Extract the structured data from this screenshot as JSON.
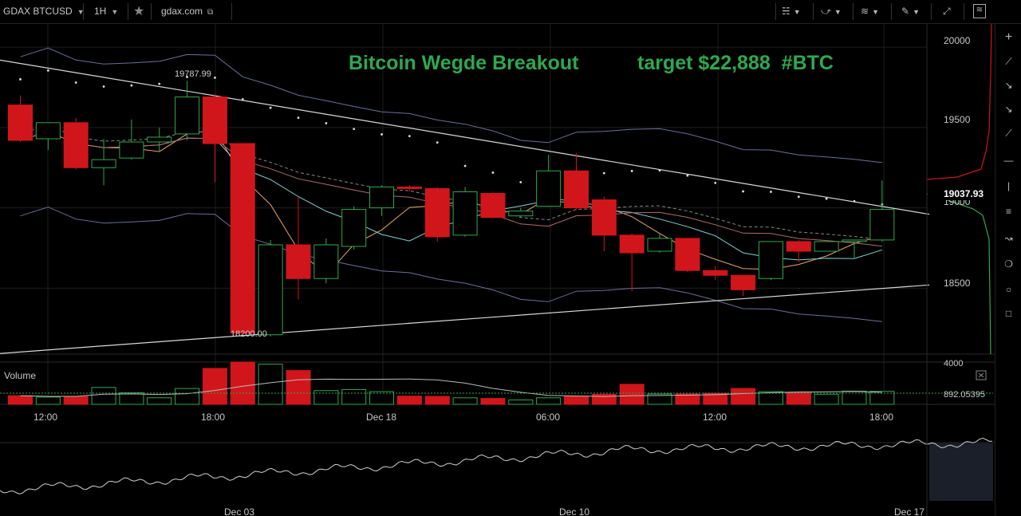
{
  "toolbar": {
    "symbol": "GDAX BTCUSD",
    "interval": "1H",
    "star_icon": "star-icon",
    "source": "gdax.com",
    "right_icons": [
      "bars-style-icon",
      "compare-icon",
      "indicators-icon",
      "draw-icon",
      "fullscreen-icon",
      "snapshot-icon"
    ]
  },
  "headline": {
    "title": "Bitcoin Wegde Breakout",
    "target": "target $22,888  #BTC",
    "color": "#2fa84f"
  },
  "annotations": {
    "high": "19787.99",
    "low": "18200.00"
  },
  "price_scale": {
    "ticks": [
      "20000",
      "19500",
      "19000",
      "18500"
    ],
    "current": "19037.93"
  },
  "volume_panel": {
    "label": "Volume",
    "top_tick": "4000",
    "current": "892.05395"
  },
  "time_axis": {
    "labels": [
      "12:00",
      "18:00",
      "Dec 18",
      "06:00",
      "12:00",
      "18:00"
    ]
  },
  "overview_axis": {
    "labels": [
      "Dec 03",
      "Dec 10",
      "Dec 17"
    ]
  },
  "colors": {
    "up": "#2fa84f",
    "down": "#d0161b",
    "background": "#000000",
    "grid": "#1e1e1e"
  },
  "chart_data": {
    "type": "candlestick",
    "symbol": "GDAX BTCUSD",
    "interval": "1H",
    "ylim": [
      18050,
      20100
    ],
    "candles": [
      {
        "t": "09:00",
        "o": 19640,
        "h": 19700,
        "l": 19410,
        "c": 19420
      },
      {
        "t": "10:00",
        "o": 19430,
        "h": 19530,
        "l": 19360,
        "c": 19530
      },
      {
        "t": "11:00",
        "o": 19530,
        "h": 19560,
        "l": 19240,
        "c": 19250
      },
      {
        "t": "12:00",
        "o": 19250,
        "h": 19430,
        "l": 19140,
        "c": 19300
      },
      {
        "t": "13:00",
        "o": 19310,
        "h": 19550,
        "l": 19300,
        "c": 19410
      },
      {
        "t": "14:00",
        "o": 19410,
        "h": 19500,
        "l": 19350,
        "c": 19440
      },
      {
        "t": "15:00",
        "o": 19460,
        "h": 19790,
        "l": 19420,
        "c": 19690
      },
      {
        "t": "16:00",
        "o": 19690,
        "h": 19710,
        "l": 19160,
        "c": 19400
      },
      {
        "t": "17:00",
        "o": 19400,
        "h": 19400,
        "l": 18210,
        "c": 18220
      },
      {
        "t": "18:00",
        "o": 18210,
        "h": 18800,
        "l": 18200,
        "c": 18770
      },
      {
        "t": "19:00",
        "o": 18770,
        "h": 19070,
        "l": 18430,
        "c": 18560
      },
      {
        "t": "20:00",
        "o": 18560,
        "h": 18810,
        "l": 18530,
        "c": 18770
      },
      {
        "t": "21:00",
        "o": 18760,
        "h": 19010,
        "l": 18740,
        "c": 18990
      },
      {
        "t": "22:00",
        "o": 19000,
        "h": 19140,
        "l": 18950,
        "c": 19130
      },
      {
        "t": "23:00",
        "o": 19130,
        "h": 19140,
        "l": 19100,
        "c": 19120
      },
      {
        "t": "00:00",
        "o": 19120,
        "h": 19130,
        "l": 18790,
        "c": 18820
      },
      {
        "t": "01:00",
        "o": 18830,
        "h": 19130,
        "l": 18820,
        "c": 19100
      },
      {
        "t": "02:00",
        "o": 19090,
        "h": 19100,
        "l": 18940,
        "c": 18940
      },
      {
        "t": "03:00",
        "o": 18950,
        "h": 19000,
        "l": 18940,
        "c": 18980
      },
      {
        "t": "04:00",
        "o": 19010,
        "h": 19330,
        "l": 19010,
        "c": 19230
      },
      {
        "t": "05:00",
        "o": 19230,
        "h": 19340,
        "l": 18990,
        "c": 19000
      },
      {
        "t": "06:00",
        "o": 19050,
        "h": 19070,
        "l": 18730,
        "c": 18830
      },
      {
        "t": "07:00",
        "o": 18830,
        "h": 18840,
        "l": 18480,
        "c": 18720
      },
      {
        "t": "08:00",
        "o": 18730,
        "h": 18840,
        "l": 18720,
        "c": 18810
      },
      {
        "t": "09:00",
        "o": 18810,
        "h": 18810,
        "l": 18600,
        "c": 18610
      },
      {
        "t": "10:00",
        "o": 18610,
        "h": 18640,
        "l": 18550,
        "c": 18580
      },
      {
        "t": "11:00",
        "o": 18580,
        "h": 18580,
        "l": 18450,
        "c": 18490
      },
      {
        "t": "12:00",
        "o": 18560,
        "h": 18790,
        "l": 18550,
        "c": 18790
      },
      {
        "t": "13:00",
        "o": 18790,
        "h": 18800,
        "l": 18660,
        "c": 18730
      },
      {
        "t": "14:00",
        "o": 18730,
        "h": 18790,
        "l": 18730,
        "c": 18790
      },
      {
        "t": "15:00",
        "o": 18790,
        "h": 18800,
        "l": 18690,
        "c": 18800
      },
      {
        "t": "16:00",
        "o": 18800,
        "h": 19170,
        "l": 18790,
        "c": 18990
      }
    ],
    "volume": [
      820,
      690,
      750,
      1600,
      1100,
      620,
      1500,
      3400,
      5000,
      3800,
      3200,
      1300,
      1400,
      1200,
      780,
      760,
      620,
      560,
      420,
      620,
      780,
      950,
      1900,
      980,
      980,
      1050,
      1500,
      1200,
      1150,
      960,
      1250,
      1230
    ],
    "volume_ylim": [
      0,
      4000
    ],
    "trendlines": [
      {
        "name": "upper",
        "from": {
          "x": -1.8,
          "y": 19950
        },
        "to": {
          "x": 32.7,
          "y": 18960
        }
      },
      {
        "name": "lower",
        "from": {
          "x": -1.8,
          "y": 18080
        },
        "to": {
          "x": 32.7,
          "y": 18520
        }
      }
    ]
  }
}
